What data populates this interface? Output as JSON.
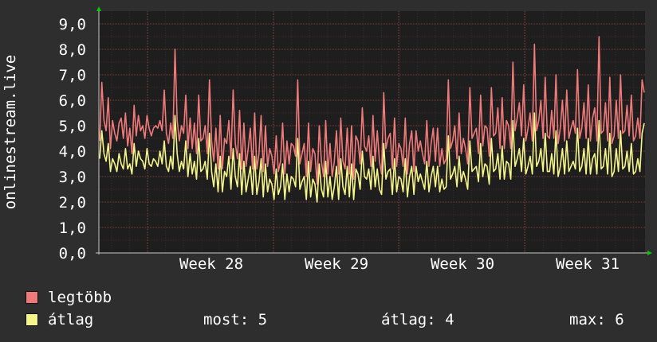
{
  "chart_data": {
    "type": "line",
    "ylabel": "onlinestream.live",
    "ylim": [
      0,
      9.5
    ],
    "yticks": [
      "0,0",
      "1,0",
      "2,0",
      "3,0",
      "4,0",
      "5,0",
      "6,0",
      "7,0",
      "8,0",
      "9,0"
    ],
    "xticks": [
      "Week 28",
      "Week 29",
      "Week 30",
      "Week 31"
    ],
    "grid": true,
    "legend_position": "bottom-left",
    "colors": {
      "max_line": "#f07a7a",
      "avg_line": "#f5f58a",
      "grid": "#7a3e3e",
      "axis": "#c8c8c8",
      "arrow": "#00cc00",
      "background": "#1e1e1e"
    },
    "series": [
      {
        "name": "legtöbb",
        "values": [
          4.4,
          6.7,
          5.2,
          4.8,
          6.1,
          4.1,
          5.2,
          4.7,
          4.4,
          5.1,
          5.3,
          4.5,
          5.5,
          4.2,
          4.9,
          3.9,
          5.8,
          4.6,
          5.4,
          4.8,
          5.0,
          4.5,
          5.4,
          4.9,
          4.6,
          4.9,
          5.0,
          4.9,
          5.2,
          4.8,
          6.4,
          4.7,
          4.3,
          5.1,
          4.5,
          8.0,
          5.2,
          4.4,
          5.0,
          4.7,
          6.2,
          4.1,
          5.3,
          4.1,
          5.1,
          3.9,
          6.2,
          4.4,
          4.5,
          5.0,
          3.9,
          6.8,
          4.4,
          3.6,
          4.9,
          3.3,
          5.4,
          3.3,
          4.5,
          4.3,
          5.2,
          3.7,
          6.4,
          4.3,
          3.7,
          5.6,
          3.3,
          5.1,
          3.4,
          4.1,
          4.9,
          3.3,
          5.5,
          3.3,
          3.9,
          5.4,
          3.2,
          5.0,
          3.4,
          4.1,
          3.8,
          3.1,
          4.6,
          3.2,
          3.6,
          5.1,
          3.1,
          4.4,
          3.5,
          4.3,
          4.2,
          3.8,
          6.8,
          3.5,
          3.9,
          4.3,
          3.0,
          5.1,
          3.2,
          4.1,
          3.9,
          2.7,
          5.0,
          3.6,
          3.0,
          5.2,
          3.1,
          4.3,
          3.0,
          3.6,
          4.8,
          3.1,
          5.3,
          3.6,
          3.3,
          4.9,
          3.1,
          5.0,
          2.9,
          4.6,
          4.4,
          3.5,
          5.7,
          4.2,
          4.0,
          4.6,
          3.4,
          5.4,
          3.6,
          4.8,
          3.6,
          3.1,
          6.3,
          4.1,
          4.5,
          4.7,
          3.3,
          5.3,
          3.4,
          4.3,
          4.1,
          3.4,
          5.3,
          3.1,
          4.3,
          4.8,
          3.2,
          4.8,
          4.0,
          4.4,
          3.9,
          3.5,
          5.2,
          3.4,
          4.3,
          4.9,
          3.6,
          4.9,
          3.4,
          4.1,
          3.5,
          3.7,
          6.8,
          4.1,
          4.4,
          5.0,
          3.7,
          5.5,
          3.9,
          4.5,
          4.1,
          3.5,
          6.5,
          4.5,
          4.7,
          4.9,
          3.9,
          6.2,
          4.2,
          5.0,
          4.9,
          3.8,
          6.5,
          4.6,
          4.7,
          5.7,
          4.1,
          6.1,
          4.1,
          5.2,
          5.0,
          4.1,
          7.5,
          4.8,
          5.3,
          5.9,
          4.6,
          6.6,
          4.4,
          4.9,
          5.5,
          4.4,
          8.2,
          4.8,
          5.2,
          6.0,
          4.5,
          6.9,
          4.6,
          4.5,
          5.6,
          4.5,
          7.0,
          4.3,
          4.9,
          6.0,
          4.4,
          6.4,
          4.5,
          4.9,
          5.2,
          4.7,
          7.2,
          4.5,
          4.9,
          5.9,
          4.5,
          6.6,
          4.4,
          5.3,
          5.7,
          4.4,
          8.5,
          4.7,
          4.8,
          5.9,
          4.4,
          6.9,
          4.3,
          4.6,
          6.0,
          4.5,
          7.0,
          4.7,
          4.8,
          5.8,
          4.6,
          6.2,
          4.4,
          4.6,
          5.3,
          4.5,
          6.8,
          6.3
        ]
      },
      {
        "name": "átlag",
        "values": [
          3.7,
          4.8,
          3.9,
          3.6,
          4.3,
          3.2,
          3.7,
          3.5,
          3.2,
          3.9,
          3.5,
          3.3,
          4.1,
          3.3,
          3.5,
          3.1,
          4.3,
          3.4,
          4.0,
          3.7,
          3.6,
          3.3,
          4.1,
          3.5,
          3.4,
          3.7,
          3.6,
          3.4,
          4.0,
          3.5,
          4.4,
          3.4,
          3.2,
          3.8,
          3.3,
          5.4,
          3.9,
          3.2,
          3.6,
          3.3,
          4.4,
          3.0,
          3.9,
          3.1,
          3.6,
          2.9,
          4.5,
          3.2,
          3.3,
          3.6,
          2.9,
          4.7,
          3.2,
          2.6,
          3.5,
          2.4,
          3.8,
          2.4,
          3.2,
          3.0,
          3.8,
          2.5,
          4.1,
          3.0,
          2.6,
          3.9,
          2.3,
          3.6,
          2.4,
          2.9,
          3.4,
          2.3,
          3.8,
          2.3,
          2.8,
          3.7,
          2.2,
          3.5,
          2.4,
          2.9,
          2.7,
          2.1,
          3.3,
          2.3,
          2.6,
          3.5,
          2.1,
          3.1,
          2.4,
          3.0,
          2.9,
          2.6,
          4.5,
          2.5,
          2.8,
          3.0,
          2.1,
          3.6,
          2.2,
          2.9,
          2.7,
          2.0,
          3.5,
          2.5,
          2.2,
          3.6,
          2.2,
          3.0,
          2.1,
          2.6,
          3.4,
          2.1,
          3.7,
          2.6,
          2.3,
          3.4,
          2.2,
          3.5,
          2.1,
          3.3,
          3.1,
          2.5,
          4.0,
          3.0,
          2.9,
          3.3,
          2.5,
          3.8,
          2.6,
          3.3,
          2.5,
          2.3,
          4.3,
          2.9,
          3.2,
          3.3,
          2.3,
          3.7,
          2.4,
          3.0,
          2.9,
          2.4,
          3.7,
          2.2,
          3.0,
          3.4,
          2.3,
          3.4,
          2.8,
          3.1,
          2.8,
          2.5,
          3.6,
          2.4,
          3.0,
          3.4,
          2.6,
          3.4,
          2.4,
          2.9,
          2.5,
          2.6,
          4.6,
          2.9,
          3.1,
          3.4,
          2.6,
          3.8,
          2.8,
          3.2,
          2.9,
          2.5,
          4.4,
          3.2,
          3.3,
          3.4,
          2.8,
          4.3,
          3.0,
          3.5,
          3.4,
          2.7,
          4.5,
          3.2,
          3.3,
          3.9,
          2.9,
          4.2,
          2.9,
          3.6,
          3.5,
          2.9,
          5.2,
          3.4,
          3.7,
          4.1,
          3.2,
          4.5,
          3.1,
          3.4,
          3.8,
          3.1,
          5.5,
          3.4,
          3.6,
          4.1,
          3.2,
          4.7,
          3.2,
          3.2,
          3.9,
          3.1,
          4.8,
          3.0,
          3.4,
          4.1,
          3.1,
          4.4,
          3.2,
          3.4,
          3.6,
          3.3,
          4.9,
          3.2,
          3.4,
          4.1,
          3.1,
          4.5,
          3.1,
          3.7,
          3.9,
          3.1,
          5.2,
          3.3,
          3.4,
          4.1,
          3.1,
          4.7,
          3.0,
          3.2,
          4.1,
          3.2,
          4.8,
          3.3,
          3.4,
          4.0,
          3.2,
          4.3,
          3.1,
          3.2,
          3.7,
          3.2,
          4.7,
          5.1
        ]
      }
    ]
  },
  "legend": {
    "items": [
      {
        "label": "legtöbb",
        "color": "#f07a7a"
      },
      {
        "label": "átlag",
        "color": "#f5f58a"
      }
    ]
  },
  "stats": {
    "current": "most: 5",
    "average": "átlag: 4",
    "max": "max: 6"
  }
}
